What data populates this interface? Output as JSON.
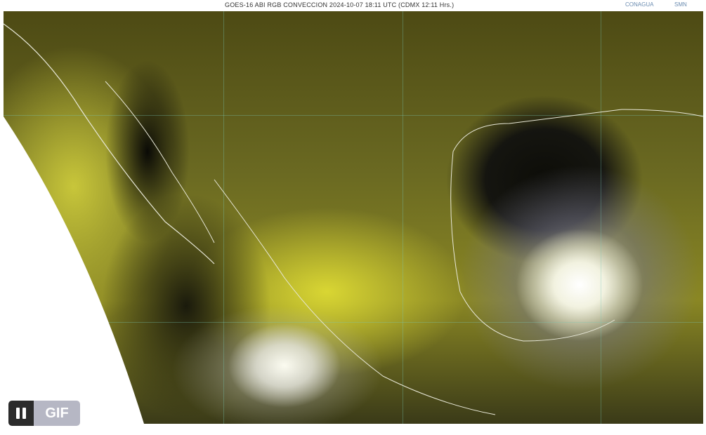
{
  "header": {
    "title": "GOES-16 ABI RGB CONVECCION 2024-10-07 18:11 UTC (CDMX  12:11 Hrs.)",
    "logos": [
      "CONAGUA",
      "SMN"
    ]
  },
  "player": {
    "pause_icon": "pause-icon",
    "gif_label": "GIF"
  },
  "colors": {
    "land_clouds": "#c8c63a",
    "ocean": "#0d0d08",
    "player_bg": "#2b2b2b",
    "gif_bg": "#b6b7c4"
  }
}
